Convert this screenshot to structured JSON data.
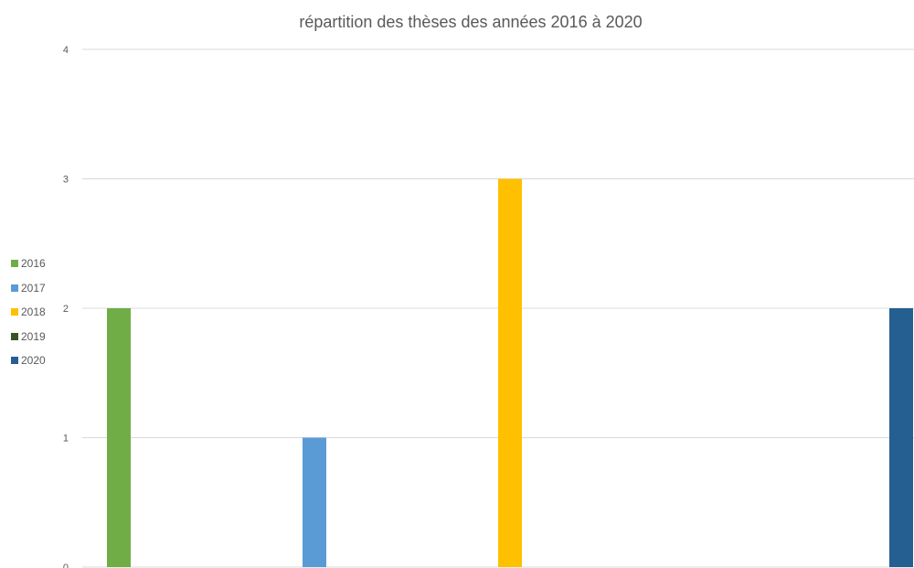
{
  "chart_data": {
    "type": "bar",
    "title": "répartition des thèses des années 2016 à 2020",
    "xlabel": "",
    "ylabel": "",
    "ylim": [
      0,
      4
    ],
    "yticks": [
      "0",
      "1",
      "2",
      "3",
      "4"
    ],
    "grid": true,
    "legend_position": "left",
    "series": [
      {
        "name": "2016",
        "value": 2,
        "color": "#70AD47"
      },
      {
        "name": "2017",
        "value": 1,
        "color": "#5B9BD5"
      },
      {
        "name": "2018",
        "value": 3,
        "color": "#FFC000"
      },
      {
        "name": "2019",
        "value": 0,
        "color": "#375623"
      },
      {
        "name": "2020",
        "value": 2,
        "color": "#255E91"
      }
    ]
  }
}
